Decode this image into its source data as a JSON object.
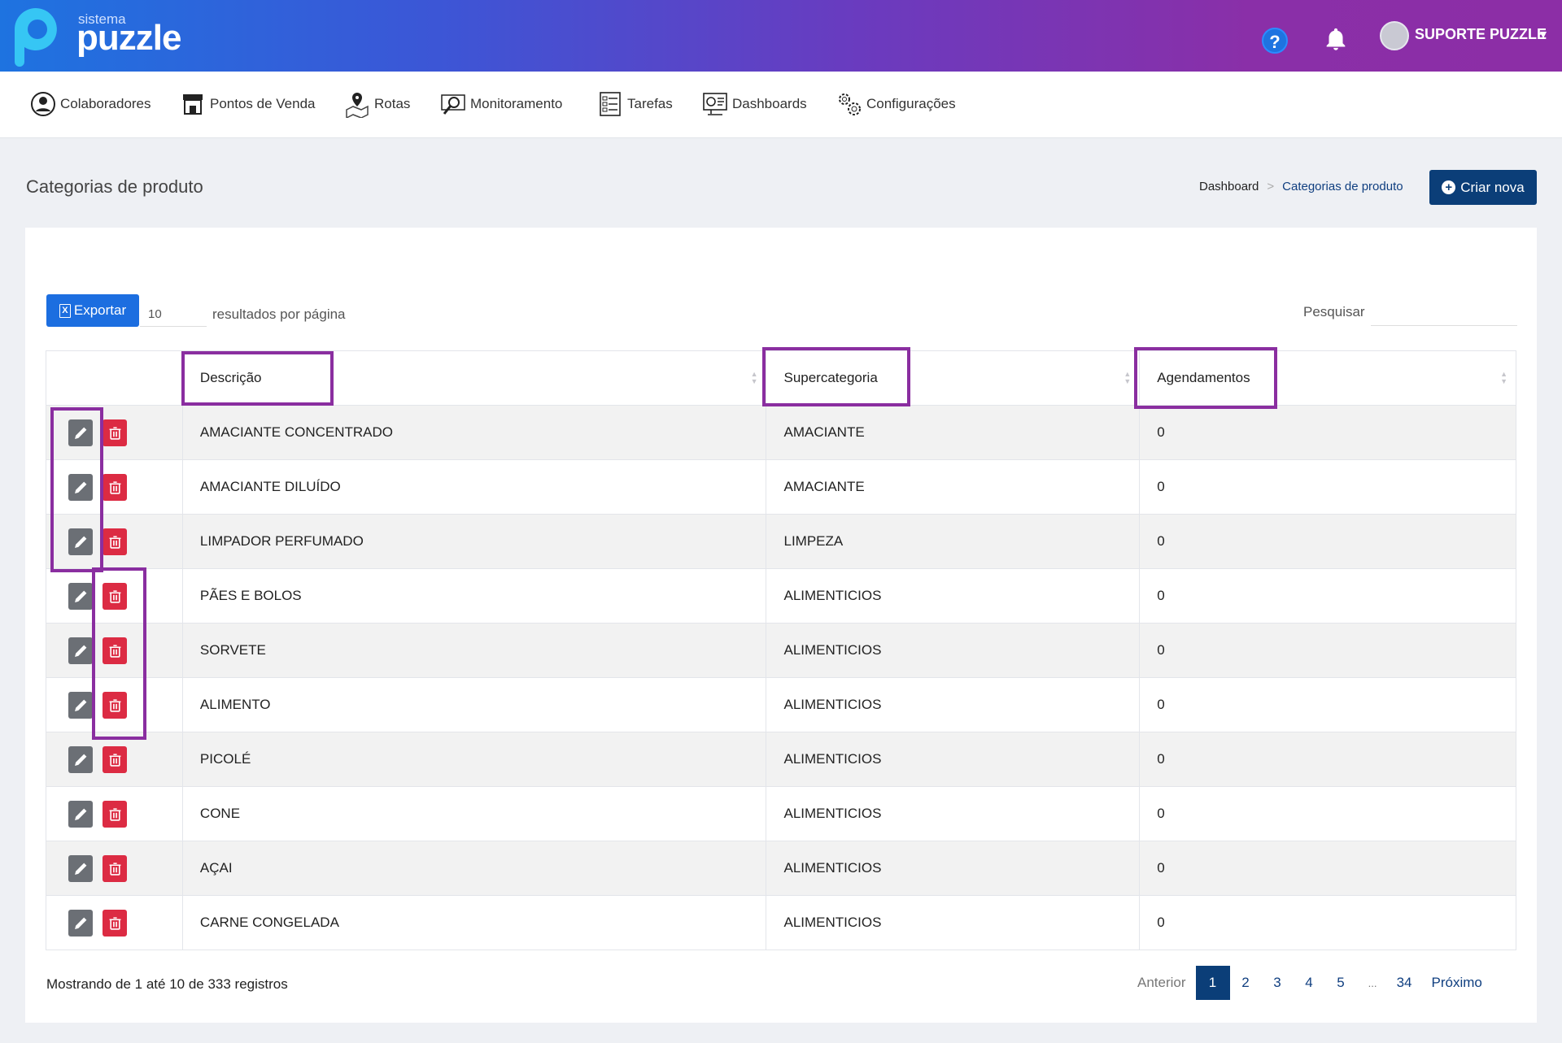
{
  "header": {
    "logo_sub": "sistema",
    "logo_main": "puzzle",
    "help_symbol": "?",
    "user_name": "SUPORTE PUZZLE",
    "accent_start": "#1e73e0",
    "accent_end": "#8c2ea6"
  },
  "nav": {
    "items": [
      {
        "label": "Colaboradores",
        "icon": "user-circle-icon"
      },
      {
        "label": "Pontos de Venda",
        "icon": "store-icon"
      },
      {
        "label": "Rotas",
        "icon": "map-pin-icon"
      },
      {
        "label": "Monitoramento",
        "icon": "monitor-search-icon"
      },
      {
        "label": "Tarefas",
        "icon": "checklist-icon"
      },
      {
        "label": "Dashboards",
        "icon": "dashboard-icon"
      },
      {
        "label": "Configurações",
        "icon": "gears-icon"
      }
    ]
  },
  "page": {
    "title": "Categorias de produto",
    "breadcrumb": {
      "home": "Dashboard",
      "separator": ">",
      "current": "Categorias de produto"
    },
    "create_button": "Criar nova",
    "create_symbol": "+"
  },
  "toolbar": {
    "export_label": "Exportar",
    "export_icon_text": "X",
    "per_page_value": "10",
    "per_page_label": "resultados por página",
    "search_label": "Pesquisar",
    "search_value": ""
  },
  "table": {
    "columns": [
      "Descrição",
      "Supercategoria",
      "Agendamentos"
    ],
    "rows": [
      {
        "descricao": "AMACIANTE CONCENTRADO",
        "supercategoria": "AMACIANTE",
        "agendamentos": "0"
      },
      {
        "descricao": "AMACIANTE DILUÍDO",
        "supercategoria": "AMACIANTE",
        "agendamentos": "0"
      },
      {
        "descricao": "LIMPADOR PERFUMADO",
        "supercategoria": "LIMPEZA",
        "agendamentos": "0"
      },
      {
        "descricao": "PÃES E BOLOS",
        "supercategoria": "ALIMENTICIOS",
        "agendamentos": "0"
      },
      {
        "descricao": "SORVETE",
        "supercategoria": "ALIMENTICIOS",
        "agendamentos": "0"
      },
      {
        "descricao": "ALIMENTO",
        "supercategoria": "ALIMENTICIOS",
        "agendamentos": "0"
      },
      {
        "descricao": "PICOLÉ",
        "supercategoria": "ALIMENTICIOS",
        "agendamentos": "0"
      },
      {
        "descricao": "CONE",
        "supercategoria": "ALIMENTICIOS",
        "agendamentos": "0"
      },
      {
        "descricao": "AÇAI",
        "supercategoria": "ALIMENTICIOS",
        "agendamentos": "0"
      },
      {
        "descricao": "CARNE CONGELADA",
        "supercategoria": "ALIMENTICIOS",
        "agendamentos": "0"
      }
    ],
    "edit_color": "#6b6f75",
    "delete_color": "#dc2b43"
  },
  "footer": {
    "info": "Mostrando de 1 até 10 de 333 registros",
    "prev": "Anterior",
    "pages": [
      "1",
      "2",
      "3",
      "4",
      "5",
      "...",
      "34"
    ],
    "active_page": "1",
    "next": "Próximo"
  },
  "highlight_color": "#8a2ea0"
}
